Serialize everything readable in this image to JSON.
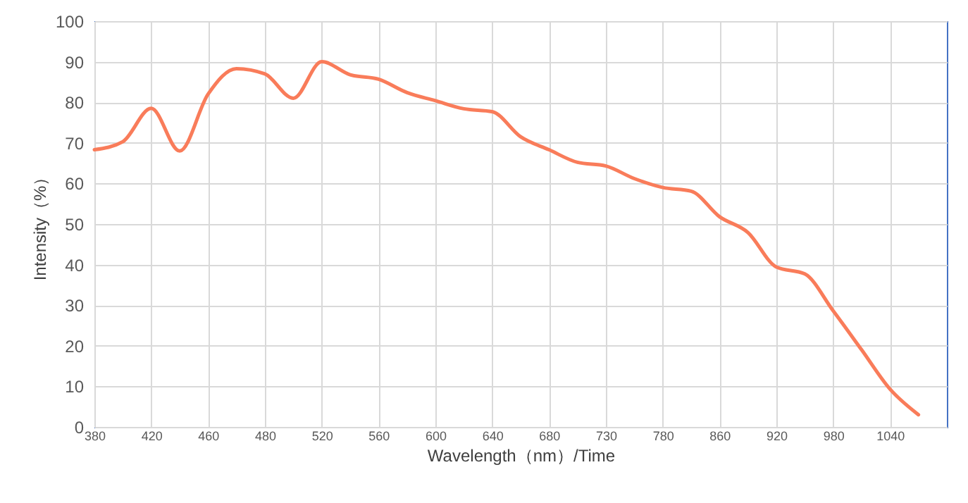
{
  "chart_data": {
    "type": "line",
    "xlabel": "Wavelength（nm）/Time",
    "ylabel": "Intensity（%）",
    "categories": [
      "380",
      null,
      "420",
      null,
      "460",
      null,
      "480",
      null,
      "520",
      null,
      "560",
      null,
      "600",
      null,
      "640",
      null,
      "680",
      null,
      "730",
      null,
      "780",
      null,
      "860",
      null,
      "920",
      null,
      "980",
      null,
      "1040",
      null,
      null
    ],
    "series": [
      {
        "color": "#f97c5a",
        "values": [
          68.3,
          70.3,
          78.5,
          68,
          82,
          88.3,
          87,
          81,
          90,
          86.8,
          85.7,
          82.4,
          80.4,
          78.4,
          77.7,
          71.5,
          68.3,
          65.2,
          64.3,
          61.2,
          59,
          58.1,
          51.8,
          47.9,
          39.4,
          37.7,
          28.6,
          19,
          9.3,
          3,
          null
        ]
      }
    ],
    "ylim": [
      0,
      100
    ],
    "yticks": [
      0,
      10,
      20,
      30,
      40,
      50,
      60,
      70,
      80,
      90,
      100
    ],
    "grid": true,
    "marker": "none",
    "line_style": "solid"
  }
}
